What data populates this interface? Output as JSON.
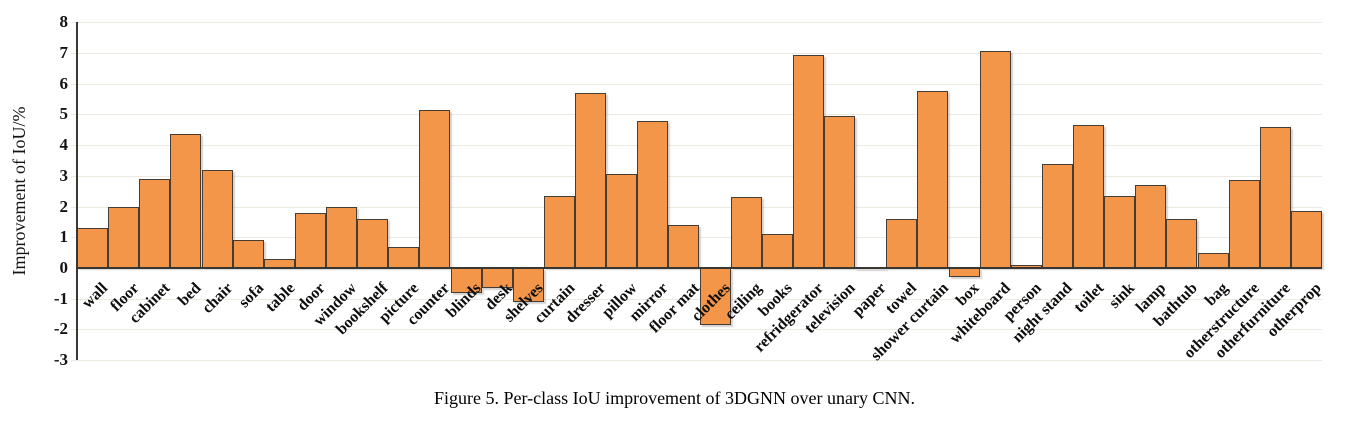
{
  "caption": "Figure 5. Per-class IoU improvement of 3DGNN over unary CNN.",
  "chart_data": {
    "type": "bar",
    "title": "",
    "xlabel": "",
    "ylabel": "Improvement of IoU/%",
    "ylim": [
      -3,
      8
    ],
    "yticks": [
      8,
      7,
      6,
      5,
      4,
      3,
      2,
      1,
      0,
      -1,
      -2,
      -3
    ],
    "grid": "horizontal",
    "legend": "none",
    "bar_fill_color": "#F4964A",
    "bar_border_color": "#453C33",
    "gridline_color": "#ECEAE0",
    "axis_color": "#3A3632",
    "categories": [
      "wall",
      "floor",
      "cabinet",
      "bed",
      "chair",
      "sofa",
      "table",
      "door",
      "window",
      "bookshelf",
      "picture",
      "counter",
      "blinds",
      "desk",
      "shelves",
      "curtain",
      "dresser",
      "pillow",
      "mirror",
      "floor mat",
      "clothes",
      "ceiling",
      "books",
      "refridgerator",
      "television",
      "paper",
      "towel",
      "shower curtain",
      "box",
      "whiteboard",
      "person",
      "night stand",
      "toilet",
      "sink",
      "lamp",
      "bathtub",
      "bag",
      "otherstructure",
      "otherfurniture",
      "otherprop"
    ],
    "values": [
      1.3,
      2.0,
      2.9,
      4.35,
      3.2,
      0.9,
      0.3,
      1.8,
      2.0,
      1.6,
      0.7,
      5.15,
      -0.8,
      -0.65,
      -1.1,
      2.35,
      5.7,
      3.05,
      4.8,
      1.4,
      -1.85,
      2.3,
      1.1,
      6.95,
      4.95,
      0.02,
      1.6,
      5.75,
      -0.3,
      7.05,
      0.1,
      3.4,
      4.65,
      2.35,
      2.7,
      1.6,
      0.5,
      2.85,
      4.6,
      1.85
    ]
  }
}
